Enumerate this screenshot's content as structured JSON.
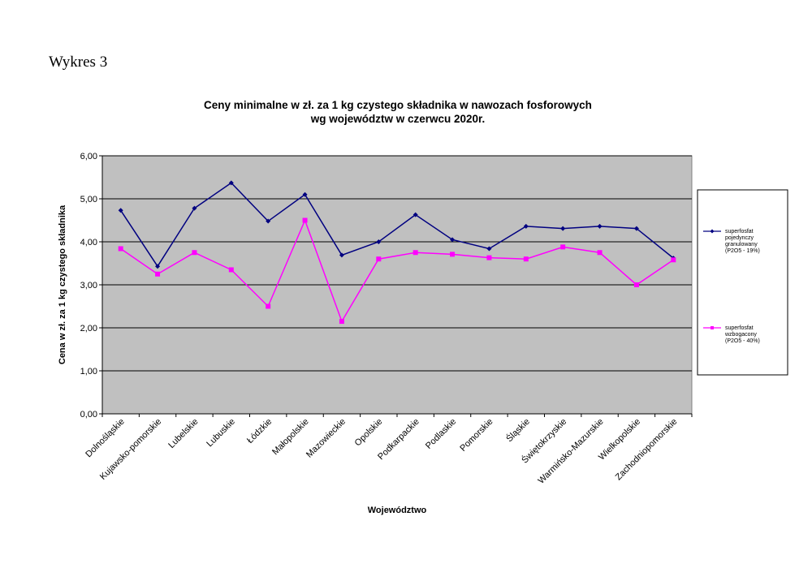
{
  "page_label": "Wykres 3",
  "colors": {
    "plot_bg": "#c0c0c0",
    "series1": "#000080",
    "series2": "#ff00ff"
  },
  "chart_data": {
    "type": "line",
    "title_line1": "Ceny minimalne   w zł. za 1 kg czystego składnika w nawozach fosforowych",
    "title_line2": "wg województw w czerwcu 2020r.",
    "xlabel": "Województwo",
    "ylabel": "Cena w zł. za 1 kg czystego składnika",
    "ylim": [
      0,
      6
    ],
    "yticks": [
      "0,00",
      "1,00",
      "2,00",
      "3,00",
      "4,00",
      "5,00",
      "6,00"
    ],
    "grid": true,
    "legend_position": "right",
    "categories": [
      "Dolnośląskie",
      "Kujawsko-pomorskie",
      "Lubelskie",
      "Lubuskie",
      "Łódzkie",
      "Małopolskie",
      "Mazowieckie",
      "Opolskie",
      "Podkarpackie",
      "Podlaskie",
      "Pomorskie",
      "Śląskie",
      "Świętokrzyskie",
      "Warmińsko-Mazurskie",
      "Wielkopolskie",
      "Zachodniopomorskie"
    ],
    "series": [
      {
        "legend_lines": [
          "superfosfat",
          "pojedynczy",
          "granulowany",
          "(P2O5 - 19%)"
        ],
        "marker": "diamond",
        "values": [
          4.73,
          3.43,
          4.78,
          5.37,
          4.48,
          5.1,
          3.69,
          4.0,
          4.63,
          4.05,
          3.84,
          4.36,
          4.31,
          4.36,
          4.31,
          3.62
        ]
      },
      {
        "legend_lines": [
          "superfosfat",
          "wzbogacony",
          "(P2O5 - 40%)"
        ],
        "marker": "square",
        "values": [
          3.84,
          3.25,
          3.75,
          3.35,
          2.5,
          4.5,
          2.15,
          3.6,
          3.75,
          3.71,
          3.63,
          3.6,
          3.88,
          3.75,
          3.0,
          3.58
        ]
      }
    ]
  }
}
